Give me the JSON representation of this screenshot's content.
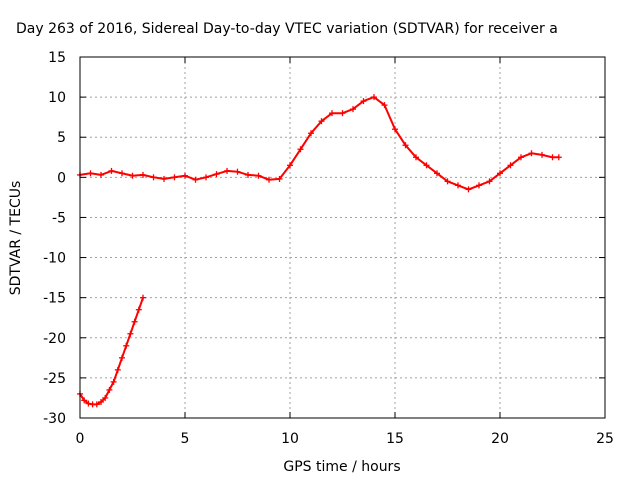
{
  "chart_data": {
    "type": "scatter",
    "title": "Day 263 of 2016, Sidereal Day-to-day VTEC variation (SDTVAR) for receiver a",
    "xlabel": "GPS time / hours",
    "ylabel": "SDTVAR / TECUs",
    "xlim": [
      0,
      25
    ],
    "ylim": [
      -30,
      15
    ],
    "x_ticks": [
      0,
      5,
      10,
      15,
      20,
      25
    ],
    "y_ticks": [
      -30,
      -25,
      -20,
      -15,
      -10,
      -5,
      0,
      5,
      10,
      15
    ],
    "grid": true,
    "marker": "plus",
    "color": "#ff0000",
    "series": [
      {
        "x": [
          0.0,
          0.5,
          1.0,
          1.5,
          2.0,
          2.5,
          3.0,
          3.5,
          4.0,
          4.5,
          5.0,
          5.5,
          6.0,
          6.5,
          7.0,
          7.5,
          8.0,
          8.5,
          9.0,
          9.5,
          10.0,
          10.5,
          11.0,
          11.5,
          12.0,
          12.5,
          13.0,
          13.5,
          14.0,
          14.5,
          15.0,
          15.5,
          16.0,
          16.5,
          17.0,
          17.5,
          18.0,
          18.5,
          19.0,
          19.5,
          20.0,
          20.5,
          21.0,
          21.5,
          22.0,
          22.5,
          22.8
        ],
        "y": [
          0.3,
          0.5,
          0.3,
          0.8,
          0.5,
          0.2,
          0.3,
          0.0,
          -0.2,
          0.0,
          0.2,
          -0.3,
          0.0,
          0.4,
          0.8,
          0.7,
          0.3,
          0.2,
          -0.3,
          -0.2,
          1.5,
          3.5,
          5.5,
          7.0,
          8.0,
          8.0,
          8.5,
          9.5,
          10.0,
          9.0,
          6.0,
          4.0,
          2.5,
          1.5,
          0.5,
          -0.5,
          -1.0,
          -1.5,
          -1.0,
          -0.5,
          0.5,
          1.5,
          2.5,
          3.0,
          2.8,
          2.5,
          2.5
        ]
      },
      {
        "x": [
          0.0,
          0.2,
          0.4,
          0.6,
          0.8,
          1.0,
          1.2,
          1.4,
          1.6,
          1.8,
          2.0,
          2.2,
          2.4,
          2.6,
          2.8,
          3.0
        ],
        "y": [
          -27.0,
          -27.8,
          -28.2,
          -28.3,
          -28.3,
          -28.0,
          -27.5,
          -26.5,
          -25.5,
          -24.0,
          -22.5,
          -21.0,
          -19.5,
          -18.0,
          -16.5,
          -15.0
        ]
      }
    ]
  }
}
